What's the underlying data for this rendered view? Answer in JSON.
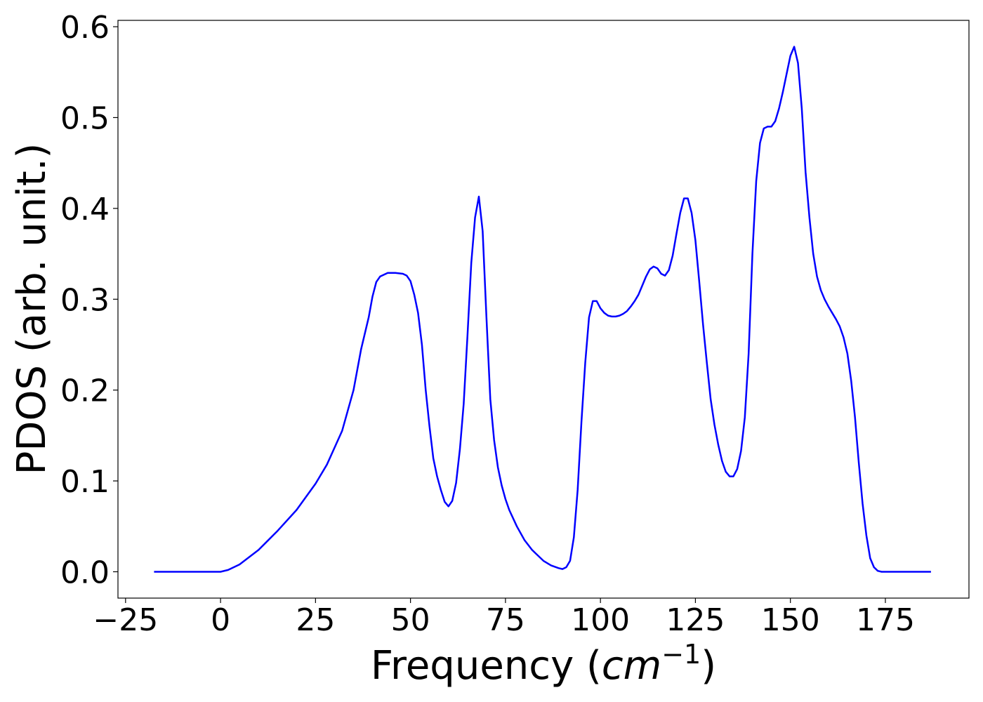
{
  "chart_data": {
    "type": "line",
    "title": "",
    "xlabel": "Frequency (cm⁻¹)",
    "xlabel_parts": {
      "prefix": "Frequency (",
      "unit_base": "cm",
      "unit_exp": "−1",
      "suffix": ")"
    },
    "ylabel": "PDOS (arb. unit.)",
    "xlim": [
      -27,
      197
    ],
    "ylim": [
      -0.029,
      0.607
    ],
    "xticks": [
      -25,
      0,
      25,
      50,
      75,
      100,
      125,
      150,
      175
    ],
    "xtick_labels": [
      "−25",
      "0",
      "25",
      "50",
      "75",
      "100",
      "125",
      "150",
      "175"
    ],
    "yticks": [
      0.0,
      0.1,
      0.2,
      0.3,
      0.4,
      0.5,
      0.6
    ],
    "ytick_labels": [
      "0.0",
      "0.1",
      "0.2",
      "0.3",
      "0.4",
      "0.5",
      "0.6"
    ],
    "grid": false,
    "legend": "none",
    "series": [
      {
        "color": "#0000ff",
        "x": [
          -17.5,
          -10,
          -5,
          0,
          2,
          5,
          10,
          15,
          20,
          25,
          28,
          32,
          35,
          37,
          39,
          40,
          41,
          42,
          44,
          46,
          48,
          49,
          50,
          51,
          52,
          53,
          54,
          55,
          56,
          57,
          58,
          59,
          60,
          61,
          62,
          63,
          64,
          65,
          66,
          67,
          68,
          69,
          70,
          71,
          72,
          73,
          74,
          75,
          76,
          78,
          80,
          82,
          85,
          87,
          89,
          90,
          91,
          92,
          93,
          94,
          95,
          96,
          97,
          98,
          99,
          100,
          101,
          102,
          103,
          104,
          105,
          106,
          107,
          108,
          109,
          110,
          111,
          112,
          113,
          114,
          115,
          116,
          117,
          118,
          119,
          120,
          121,
          122,
          123,
          124,
          125,
          126,
          127,
          128,
          129,
          130,
          131,
          132,
          133,
          134,
          135,
          136,
          137,
          138,
          139,
          140,
          141,
          142,
          143,
          144,
          145,
          146,
          147,
          148,
          149,
          150,
          151,
          152,
          153,
          154,
          155,
          156,
          157,
          158,
          159,
          160,
          161,
          162,
          163,
          164,
          165,
          166,
          167,
          168,
          169,
          170,
          171,
          172,
          173,
          174,
          175,
          176,
          180,
          187
        ],
        "y": [
          0.0,
          0.0,
          0.0,
          0.0,
          0.002,
          0.008,
          0.024,
          0.045,
          0.068,
          0.097,
          0.118,
          0.155,
          0.2,
          0.245,
          0.28,
          0.303,
          0.319,
          0.325,
          0.329,
          0.329,
          0.328,
          0.326,
          0.32,
          0.305,
          0.285,
          0.25,
          0.2,
          0.16,
          0.125,
          0.105,
          0.09,
          0.077,
          0.072,
          0.078,
          0.098,
          0.135,
          0.185,
          0.26,
          0.34,
          0.39,
          0.413,
          0.375,
          0.28,
          0.19,
          0.145,
          0.115,
          0.095,
          0.08,
          0.068,
          0.05,
          0.035,
          0.024,
          0.012,
          0.007,
          0.004,
          0.003,
          0.005,
          0.012,
          0.038,
          0.09,
          0.165,
          0.23,
          0.28,
          0.298,
          0.298,
          0.29,
          0.285,
          0.282,
          0.281,
          0.281,
          0.282,
          0.284,
          0.287,
          0.292,
          0.298,
          0.305,
          0.315,
          0.325,
          0.333,
          0.336,
          0.334,
          0.328,
          0.326,
          0.332,
          0.348,
          0.372,
          0.395,
          0.411,
          0.411,
          0.395,
          0.365,
          0.32,
          0.272,
          0.23,
          0.19,
          0.162,
          0.14,
          0.122,
          0.11,
          0.105,
          0.105,
          0.113,
          0.133,
          0.17,
          0.24,
          0.35,
          0.43,
          0.472,
          0.488,
          0.49,
          0.49,
          0.496,
          0.51,
          0.528,
          0.548,
          0.568,
          0.578,
          0.56,
          0.51,
          0.44,
          0.39,
          0.35,
          0.325,
          0.31,
          0.3,
          0.292,
          0.285,
          0.278,
          0.27,
          0.258,
          0.24,
          0.21,
          0.17,
          0.12,
          0.075,
          0.04,
          0.015,
          0.005,
          0.001,
          0.0,
          0.0,
          0.0,
          0.0,
          0.0
        ]
      }
    ]
  }
}
